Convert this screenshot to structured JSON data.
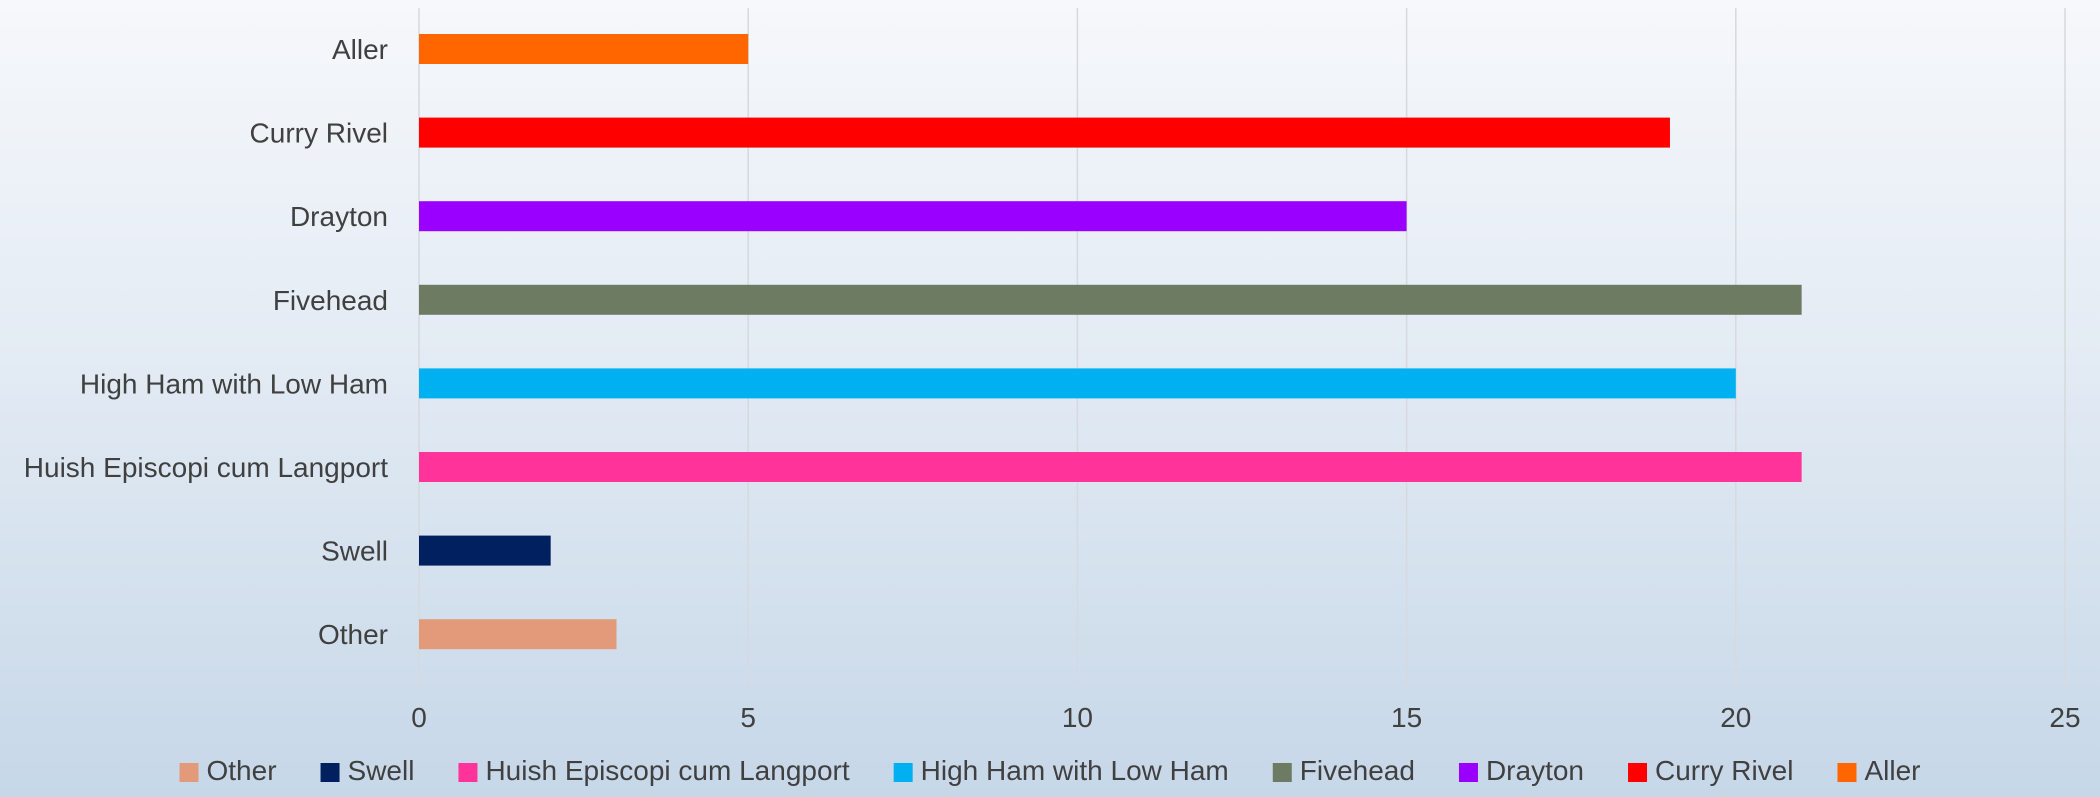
{
  "chart_data": {
    "type": "bar",
    "orientation": "horizontal",
    "categories": [
      "Aller",
      "Curry Rivel",
      "Drayton",
      "Fivehead",
      "High Ham with Low Ham",
      "Huish Episcopi cum Langport",
      "Swell",
      "Other"
    ],
    "values": [
      5,
      19,
      15,
      21,
      20,
      21,
      2,
      3
    ],
    "colors": [
      "#FF6600",
      "#FF0000",
      "#9900FF",
      "#6E7B63",
      "#00B0F0",
      "#FF3399",
      "#002060",
      "#E39A7B"
    ],
    "xlim": [
      0,
      25
    ],
    "xticks": [
      0,
      5,
      10,
      15,
      20,
      25
    ],
    "grid": true,
    "legend_position": "bottom",
    "legend": [
      "Other",
      "Swell",
      "Huish Episcopi cum Langport",
      "High Ham with Low Ham",
      "Fivehead",
      "Drayton",
      "Curry Rivel",
      "Aller"
    ],
    "title": "",
    "xlabel": "",
    "ylabel": ""
  }
}
